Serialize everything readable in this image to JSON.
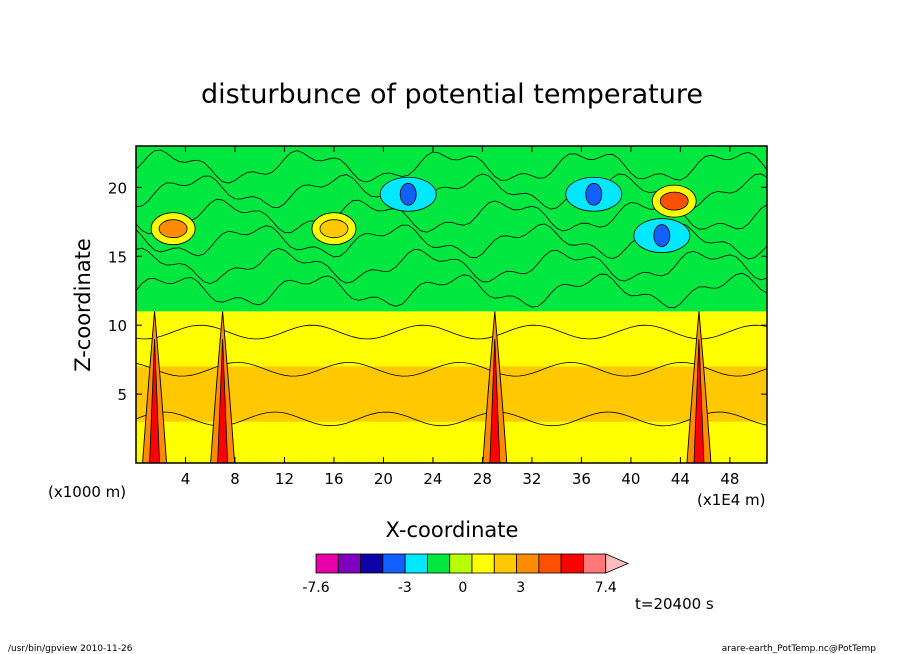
{
  "chart_data": {
    "type": "heatmap",
    "title": "disturbunce of potential temperature",
    "xlabel": "X-coordinate",
    "ylabel": "Z-coordinate",
    "x_unit_left": "(x1000 m)",
    "x_unit_right": "(x1E4 m)",
    "xlim": [
      0,
      51
    ],
    "ylim": [
      0,
      23
    ],
    "x_ticks": [
      4,
      8,
      12,
      16,
      20,
      24,
      28,
      32,
      36,
      40,
      44,
      48
    ],
    "y_ticks": [
      5,
      10,
      15,
      20
    ],
    "colorbar": {
      "colors": [
        "#e800a8",
        "#8000c0",
        "#1000a8",
        "#1060ff",
        "#00e8ff",
        "#00e840",
        "#b8ff00",
        "#ffff00",
        "#ffc800",
        "#ff8c00",
        "#ff5000",
        "#ff0000",
        "#ff7878",
        "#ffbcbc"
      ],
      "tick_labels": [
        "-7.6",
        "-3",
        "0",
        "3",
        "7.4"
      ],
      "tick_values": [
        -7.6,
        -3,
        0,
        3,
        7.4
      ],
      "min": -7.6,
      "max": 7.4
    },
    "time_label": "t=20400 s",
    "layers": [
      {
        "name": "lower warm layer",
        "z_range": [
          0,
          11
        ],
        "color": "#ffff00"
      },
      {
        "name": "warm band",
        "z_range": [
          3,
          7
        ],
        "color": "#ffc800"
      },
      {
        "name": "upper neutral layer",
        "z_range": [
          11,
          23
        ],
        "color": "#00e840"
      }
    ],
    "plumes_x": [
      1.5,
      7,
      29,
      45.5
    ],
    "warm_upper_blobs": [
      {
        "x": 3,
        "z": 17,
        "value": 3
      },
      {
        "x": 16,
        "z": 17,
        "value": 2
      },
      {
        "x": 43.5,
        "z": 19,
        "value": 4
      }
    ],
    "cold_upper_blobs": [
      {
        "x": 22,
        "z": 19.5,
        "value": -3
      },
      {
        "x": 37,
        "z": 19.5,
        "value": -4
      },
      {
        "x": 42.5,
        "z": 16.5,
        "value": -4
      }
    ]
  },
  "footer": {
    "left": "/usr/bin/gpview   2010-11-26",
    "right": "arare-earth_PotTemp.nc@PotTemp"
  }
}
